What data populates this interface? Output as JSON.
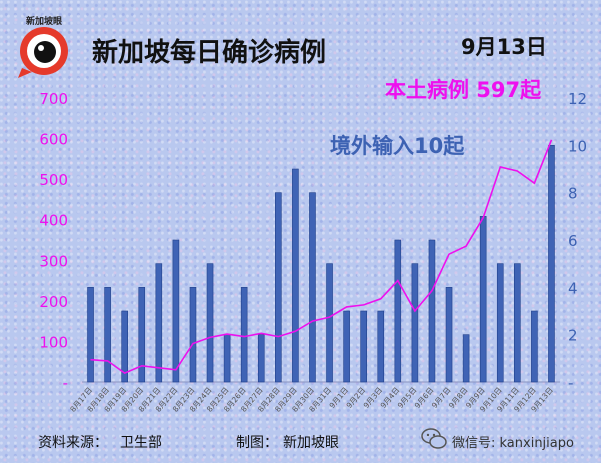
{
  "header": {
    "logo_text": "新加坡眼",
    "title": "新加坡每日确诊病例",
    "date": "9月13日",
    "local_label": "本土病例 597起",
    "overseas_label": "境外输入10起"
  },
  "footer": {
    "source_label": "资料来源：",
    "source_value": "卫生部",
    "maker_label": "制图：",
    "maker_value": "新加坡眼",
    "wechat": "微信号: kanxinjiapo"
  },
  "colors": {
    "bar": "#3f63b5",
    "bar_border": "#1f3f8a",
    "line": "#ee10ee",
    "left_axis": "#ee10ee",
    "right_axis": "#3d62b3"
  },
  "chart_data": {
    "type": "bar",
    "categories": [
      "8月17日",
      "8月18日",
      "8月19日",
      "8月20日",
      "8月21日",
      "8月22日",
      "8月23日",
      "8月24日",
      "8月25日",
      "8月26日",
      "8月27日",
      "8月28日",
      "8月29日",
      "8月30日",
      "8月31日",
      "9月1日",
      "9月2日",
      "9月3日",
      "9月4日",
      "9月5日",
      "9月6日",
      "9月7日",
      "9月8日",
      "9月9日",
      "9月10日",
      "9月11日",
      "9月12日",
      "9月13日"
    ],
    "series": [
      {
        "axis": "right",
        "chart": "bar",
        "values": [
          4,
          4,
          3,
          4,
          5,
          6,
          4,
          5,
          2,
          4,
          2,
          8,
          9,
          8,
          5,
          3,
          3,
          3,
          6,
          5,
          6,
          4,
          2,
          7,
          5,
          5,
          3,
          10
        ]
      },
      {
        "axis": "left",
        "chart": "line",
        "values": [
          55,
          52,
          22,
          40,
          35,
          30,
          95,
          110,
          118,
          112,
          120,
          112,
          125,
          150,
          160,
          185,
          190,
          205,
          250,
          175,
          225,
          315,
          335,
          405,
          530,
          520,
          490,
          597
        ]
      }
    ],
    "y_left": {
      "ticks": [
        "-",
        "100",
        "200",
        "300",
        "400",
        "500",
        "600",
        "700"
      ],
      "ylim": [
        0,
        700
      ]
    },
    "y_right": {
      "ticks": [
        "-",
        "2",
        "4",
        "6",
        "8",
        "10",
        "12"
      ],
      "ylim": [
        0,
        12
      ]
    },
    "grid": false,
    "legend": "none"
  }
}
